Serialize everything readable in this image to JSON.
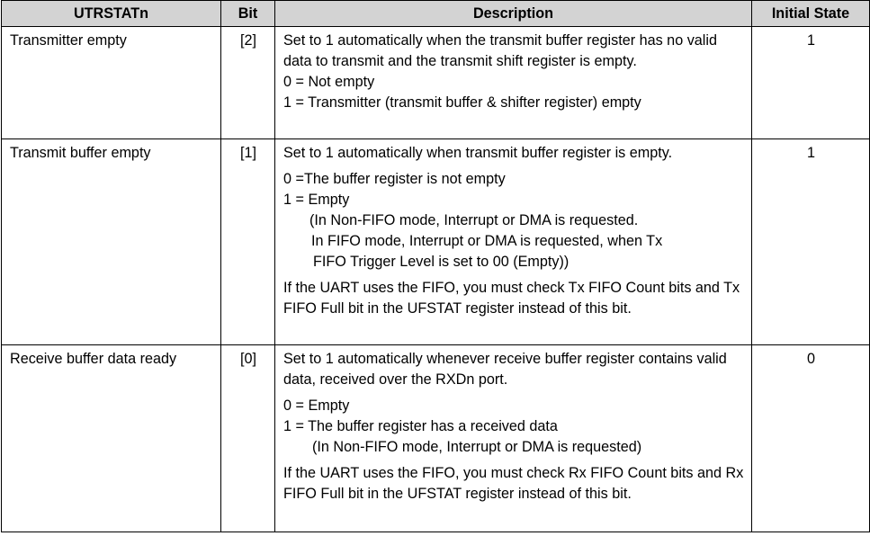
{
  "headers": {
    "name": "UTRSTATn",
    "bit": "Bit",
    "description": "Description",
    "initial": "Initial State"
  },
  "rows": [
    {
      "name": "Transmitter empty",
      "bit": "[2]",
      "initial": "1",
      "desc": {
        "p1": "Set to 1 automatically when the transmit buffer register has no valid data to transmit and the transmit shift register is empty.",
        "l1": "0 = Not empty",
        "l2": "1 = Transmitter (transmit buffer & shifter register) empty"
      }
    },
    {
      "name": "Transmit buffer empty",
      "bit": "[1]",
      "initial": "1",
      "desc": {
        "p1": "Set to 1 automatically when transmit buffer register is empty.",
        "l1": "0 =The buffer register is not empty",
        "l2": "1 = Empty",
        "l3": "(In Non-FIFO mode, Interrupt or DMA is requested.",
        "l4": "In FIFO mode, Interrupt or DMA is requested, when Tx",
        "l5": "FIFO Trigger Level is set to 00 (Empty))",
        "p2": "If the UART uses the FIFO, you must check Tx FIFO Count bits and Tx FIFO Full bit in the UFSTAT register instead of this bit."
      }
    },
    {
      "name": "Receive buffer data ready",
      "bit": "[0]",
      "initial": "0",
      "desc": {
        "p1": "Set to 1 automatically whenever receive buffer register contains valid data, received over the RXDn port.",
        "l1": "0 = Empty",
        "l2": "1 = The buffer register has a received data",
        "l3": "(In Non-FIFO mode, Interrupt or DMA is requested)",
        "p2": "If the UART uses the FIFO, you must check Rx FIFO Count bits and Rx FIFO Full bit in the UFSTAT register instead of this bit."
      }
    }
  ]
}
